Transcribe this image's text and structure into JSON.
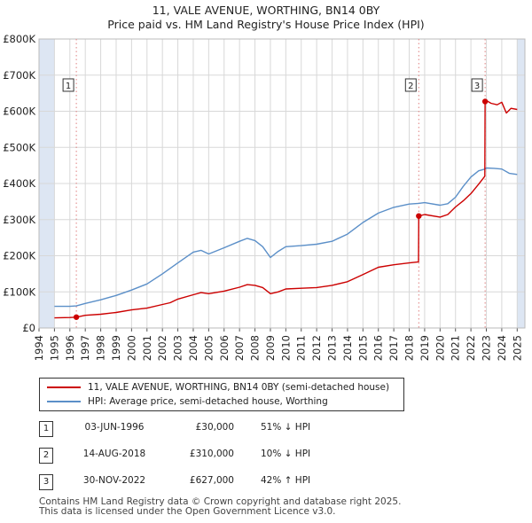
{
  "title_line1": "11, VALE AVENUE, WORTHING, BN14 0BY",
  "title_line2": "Price paid vs. HM Land Registry's House Price Index (HPI)",
  "colors": {
    "price": "#cc0000",
    "hpi": "#5b8fc8",
    "shade": "#dde6f3",
    "grid": "#d8d8d8"
  },
  "legend": [
    {
      "label": "11, VALE AVENUE, WORTHING, BN14 0BY (semi-detached house)",
      "color": "#cc0000"
    },
    {
      "label": "HPI: Average price, semi-detached house, Worthing",
      "color": "#5b8fc8"
    }
  ],
  "transactions": [
    {
      "id": "1",
      "date": "03-JUN-1996",
      "price": "£30,000",
      "diff": "51% ↓ HPI"
    },
    {
      "id": "2",
      "date": "14-AUG-2018",
      "price": "£310,000",
      "diff": "10% ↓ HPI"
    },
    {
      "id": "3",
      "date": "30-NOV-2022",
      "price": "£627,000",
      "diff": "42% ↑ HPI"
    }
  ],
  "footer_line1": "Contains HM Land Registry data © Crown copyright and database right 2025.",
  "footer_line2": "This data is licensed under the Open Government Licence v3.0.",
  "chart_data": {
    "type": "line",
    "title": "11, VALE AVENUE, WORTHING, BN14 0BY — Price paid vs. HM Land Registry's House Price Index (HPI)",
    "xlabel": "",
    "ylabel": "",
    "xlim": [
      1994,
      2025
    ],
    "ylim": [
      0,
      800000
    ],
    "x_ticks": [
      "1994",
      "1995",
      "1996",
      "1997",
      "1998",
      "1999",
      "2000",
      "2001",
      "2002",
      "2003",
      "2004",
      "2005",
      "2006",
      "2007",
      "2008",
      "2009",
      "2010",
      "2011",
      "2012",
      "2013",
      "2014",
      "2015",
      "2016",
      "2017",
      "2018",
      "2019",
      "2020",
      "2021",
      "2022",
      "2023",
      "2024",
      "2025"
    ],
    "y_ticks": [
      {
        "value": 0,
        "label": "£0"
      },
      {
        "value": 100000,
        "label": "£100K"
      },
      {
        "value": 200000,
        "label": "£200K"
      },
      {
        "value": 300000,
        "label": "£300K"
      },
      {
        "value": 400000,
        "label": "£400K"
      },
      {
        "value": 500000,
        "label": "£500K"
      },
      {
        "value": 600000,
        "label": "£600K"
      },
      {
        "value": 700000,
        "label": "£700K"
      },
      {
        "value": 800000,
        "label": "£800K"
      }
    ],
    "shaded_ranges": [
      [
        1994,
        1995
      ],
      [
        2025,
        2025.5
      ]
    ],
    "series": [
      {
        "name": "11, VALE AVENUE, WORTHING, BN14 0BY (semi-detached house)",
        "x": [
          1995.0,
          1996.0,
          1996.42,
          1997.0,
          1998.0,
          1999.0,
          2000.0,
          2001.0,
          2002.0,
          2002.5,
          2003.0,
          2004.0,
          2004.5,
          2005.0,
          2006.0,
          2007.0,
          2007.5,
          2008.0,
          2008.5,
          2009.0,
          2009.5,
          2010.0,
          2011.0,
          2012.0,
          2013.0,
          2014.0,
          2015.0,
          2016.0,
          2017.0,
          2018.0,
          2018.6,
          2018.62,
          2019.0,
          2020.0,
          2020.5,
          2021.0,
          2021.5,
          2022.0,
          2022.5,
          2022.9,
          2022.92,
          2023.0,
          2023.3,
          2023.7,
          2024.0,
          2024.3,
          2024.6,
          2025.0
        ],
        "values": [
          28000,
          29000,
          30000,
          35000,
          38000,
          43000,
          50000,
          55000,
          65000,
          70000,
          80000,
          92000,
          98000,
          95000,
          102000,
          113000,
          120000,
          118000,
          112000,
          95000,
          100000,
          108000,
          110000,
          112000,
          118000,
          128000,
          148000,
          168000,
          175000,
          180000,
          183000,
          310000,
          314000,
          307000,
          314000,
          335000,
          352000,
          372000,
          398000,
          420000,
          627000,
          630000,
          622000,
          618000,
          625000,
          595000,
          608000,
          605000
        ]
      },
      {
        "name": "HPI: Average price, semi-detached house, Worthing",
        "x": [
          1995.0,
          1996.0,
          1996.42,
          1997.0,
          1998.0,
          1999.0,
          2000.0,
          2001.0,
          2002.0,
          2003.0,
          2004.0,
          2004.5,
          2005.0,
          2006.0,
          2007.0,
          2007.5,
          2008.0,
          2008.5,
          2009.0,
          2009.5,
          2010.0,
          2011.0,
          2012.0,
          2013.0,
          2014.0,
          2015.0,
          2016.0,
          2017.0,
          2018.0,
          2018.62,
          2019.0,
          2020.0,
          2020.5,
          2021.0,
          2021.5,
          2022.0,
          2022.5,
          2022.92,
          2023.0,
          2023.5,
          2024.0,
          2024.5,
          2025.0
        ],
        "values": [
          60000,
          60000,
          61000,
          68000,
          78000,
          90000,
          105000,
          122000,
          150000,
          180000,
          210000,
          215000,
          205000,
          222000,
          240000,
          248000,
          242000,
          225000,
          195000,
          212000,
          225000,
          228000,
          232000,
          240000,
          260000,
          292000,
          318000,
          334000,
          343000,
          345000,
          347000,
          340000,
          344000,
          362000,
          392000,
          418000,
          435000,
          440000,
          443000,
          442000,
          440000,
          428000,
          425000
        ]
      }
    ],
    "annotations": [
      {
        "label": "1",
        "x": 1996.42,
        "y": 30000,
        "box_y": 670000
      },
      {
        "label": "2",
        "x": 2018.62,
        "y": 310000,
        "box_y": 670000
      },
      {
        "label": "3",
        "x": 2022.92,
        "y": 627000,
        "box_y": 670000
      }
    ]
  }
}
